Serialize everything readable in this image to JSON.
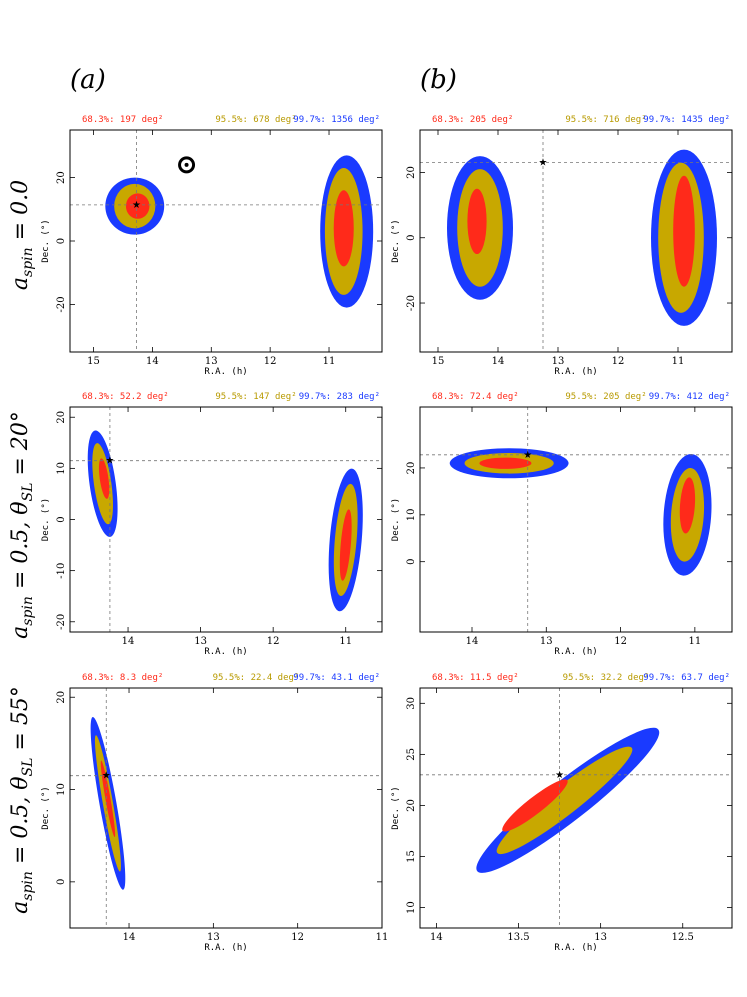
{
  "columns": [
    "(a)",
    "(b)"
  ],
  "rows": [
    {
      "label_main": "a",
      "label_sub": "spin",
      "label_rest": " = 0.0"
    },
    {
      "label_main": "a",
      "label_sub": "spin",
      "label_rest": " = 0.5, θ",
      "label_sub2": "SL",
      "label_end": " = 20°"
    },
    {
      "label_main": "a",
      "label_sub": "spin",
      "label_rest": " = 0.5, θ",
      "label_sub2": "SL",
      "label_end": " = 55°"
    }
  ],
  "colors": {
    "c68": "#ff2a1a",
    "c95": "#c8a800",
    "c99": "#1a3aff"
  },
  "chart_data": [
    {
      "id": "a0",
      "type": "heatmap",
      "xlabel": "R.A. (h)",
      "ylabel": "Dec. (°)",
      "xlim": [
        15.4,
        10.1
      ],
      "ylim": [
        -35,
        35
      ],
      "xticks": [
        15,
        14,
        13,
        12,
        11
      ],
      "yticks": [
        -20,
        0,
        20
      ],
      "areas": {
        "c68": "68.3%: 197 deg²",
        "c95": "95.5%: 678 deg²",
        "c99": "99.7%: 1356 deg²"
      },
      "true_position": {
        "ra": 14.27,
        "dec": 11.4
      },
      "extra_marker": {
        "ra": 13.42,
        "dec": 24.0
      },
      "regions": [
        {
          "ra": 10.7,
          "dec": 3,
          "a": 0.45,
          "b": 24,
          "rot": 0,
          "level": 99
        },
        {
          "ra": 10.75,
          "dec": 3,
          "a": 0.32,
          "b": 20,
          "rot": 0,
          "level": 95
        },
        {
          "ra": 10.75,
          "dec": 4,
          "a": 0.17,
          "b": 12,
          "rot": 0,
          "level": 68
        },
        {
          "ra": 14.3,
          "dec": 11,
          "a": 0.5,
          "b": 9,
          "rot": 0,
          "level": 99
        },
        {
          "ra": 14.3,
          "dec": 11,
          "a": 0.35,
          "b": 7,
          "rot": 0,
          "level": 95
        },
        {
          "ra": 14.25,
          "dec": 11,
          "a": 0.2,
          "b": 4,
          "rot": 0,
          "level": 68
        }
      ]
    },
    {
      "id": "b0",
      "type": "heatmap",
      "xlabel": "R.A. (h)",
      "ylabel": "Dec. (°)",
      "xlim": [
        15.3,
        10.1
      ],
      "ylim": [
        -35,
        33
      ],
      "xticks": [
        15,
        14,
        13,
        12,
        11
      ],
      "yticks": [
        -20,
        0,
        20
      ],
      "areas": {
        "c68": "68.3%: 205 deg²",
        "c95": "95.5%: 716 deg²",
        "c99": "99.7%: 1435 deg²"
      },
      "true_position": {
        "ra": 13.25,
        "dec": 23.0
      },
      "regions": [
        {
          "ra": 10.9,
          "dec": 0,
          "a": 0.55,
          "b": 27,
          "rot": 0,
          "level": 99
        },
        {
          "ra": 10.95,
          "dec": 0,
          "a": 0.38,
          "b": 23,
          "rot": 0,
          "level": 95
        },
        {
          "ra": 10.9,
          "dec": 2,
          "a": 0.18,
          "b": 17,
          "rot": 0,
          "level": 68
        },
        {
          "ra": 14.3,
          "dec": 3,
          "a": 0.55,
          "b": 22,
          "rot": 0,
          "level": 99
        },
        {
          "ra": 14.3,
          "dec": 3,
          "a": 0.38,
          "b": 18,
          "rot": 0,
          "level": 95
        },
        {
          "ra": 14.35,
          "dec": 5,
          "a": 0.16,
          "b": 10,
          "rot": 0,
          "level": 68
        }
      ]
    },
    {
      "id": "a1",
      "type": "heatmap",
      "xlabel": "R.A. (h)",
      "ylabel": "Dec. (°)",
      "xlim": [
        14.8,
        10.5
      ],
      "ylim": [
        -22,
        22
      ],
      "xticks": [
        14,
        13,
        12,
        11
      ],
      "yticks": [
        -20,
        -10,
        0,
        10,
        20
      ],
      "areas": {
        "c68": "68.3%: 52.2 deg²",
        "c95": "95.5%: 147 deg²",
        "c99": "99.7%: 283 deg²"
      },
      "true_position": {
        "ra": 14.25,
        "dec": 11.5
      },
      "regions": [
        {
          "ra": 14.35,
          "dec": 7,
          "a": 0.18,
          "b": 10.5,
          "rot": -8,
          "level": 99
        },
        {
          "ra": 14.35,
          "dec": 7,
          "a": 0.12,
          "b": 8,
          "rot": -8,
          "level": 95
        },
        {
          "ra": 14.33,
          "dec": 8,
          "a": 0.06,
          "b": 4,
          "rot": -8,
          "level": 68
        },
        {
          "ra": 11.0,
          "dec": -4,
          "a": 0.22,
          "b": 14,
          "rot": 5,
          "level": 99
        },
        {
          "ra": 11.0,
          "dec": -4,
          "a": 0.15,
          "b": 11,
          "rot": 5,
          "level": 95
        },
        {
          "ra": 11.0,
          "dec": -5,
          "a": 0.07,
          "b": 7,
          "rot": 5,
          "level": 68
        }
      ]
    },
    {
      "id": "b1",
      "type": "heatmap",
      "xlabel": "R.A. (h)",
      "ylabel": "Dec. (°)",
      "xlim": [
        14.7,
        10.5
      ],
      "ylim": [
        -15,
        33
      ],
      "xticks": [
        14,
        13,
        12,
        11
      ],
      "yticks": [
        0,
        10,
        20
      ],
      "areas": {
        "c68": "68.3%: 72.4 deg²",
        "c95": "95.5%: 205 deg²",
        "c99": "99.7%: 412 deg²"
      },
      "true_position": {
        "ra": 13.25,
        "dec": 22.8
      },
      "regions": [
        {
          "ra": 13.5,
          "dec": 21,
          "a": 0.8,
          "b": 3.2,
          "rot": 0,
          "level": 99
        },
        {
          "ra": 13.5,
          "dec": 21,
          "a": 0.6,
          "b": 2.2,
          "rot": 0,
          "level": 95
        },
        {
          "ra": 13.55,
          "dec": 21,
          "a": 0.35,
          "b": 1.2,
          "rot": 0,
          "level": 68
        },
        {
          "ra": 11.1,
          "dec": 10,
          "a": 0.32,
          "b": 13,
          "rot": 4,
          "level": 99
        },
        {
          "ra": 11.1,
          "dec": 10,
          "a": 0.22,
          "b": 10,
          "rot": 4,
          "level": 95
        },
        {
          "ra": 11.1,
          "dec": 12,
          "a": 0.1,
          "b": 6,
          "rot": 4,
          "level": 68
        }
      ]
    },
    {
      "id": "a2",
      "type": "heatmap",
      "xlabel": "R.A. (h)",
      "ylabel": "Dec. (°)",
      "xlim": [
        14.7,
        11.0
      ],
      "ylim": [
        -5,
        21
      ],
      "xticks": [
        14,
        13,
        12,
        11
      ],
      "yticks": [
        0,
        10,
        20
      ],
      "areas": {
        "c68": "68.3%: 8.3 deg²",
        "c95": "95.5%: 22.4 deg²",
        "c99": "99.7%: 43.1 deg²"
      },
      "true_position": {
        "ra": 14.27,
        "dec": 11.5
      },
      "regions": [
        {
          "ra": 14.25,
          "dec": 8.5,
          "a": 0.1,
          "b": 9.5,
          "rot": -10,
          "level": 99
        },
        {
          "ra": 14.25,
          "dec": 8.5,
          "a": 0.06,
          "b": 7.5,
          "rot": -10,
          "level": 95
        },
        {
          "ra": 14.25,
          "dec": 9,
          "a": 0.03,
          "b": 4.2,
          "rot": -10,
          "level": 68
        }
      ]
    },
    {
      "id": "b2",
      "type": "heatmap",
      "xlabel": "R.A. (h)",
      "ylabel": "Dec. (°)",
      "xlim": [
        14.1,
        12.2
      ],
      "ylim": [
        8,
        31.5
      ],
      "xticks": [
        14,
        13.5,
        13,
        12.5
      ],
      "yticks": [
        10,
        15,
        20,
        25,
        30
      ],
      "areas": {
        "c68": "68.3%: 11.5 deg²",
        "c95": "95.5%: 32.2 deg²",
        "c99": "99.7%: 63.7 deg²"
      },
      "true_position": {
        "ra": 13.25,
        "dec": 23.0
      },
      "regions": [
        {
          "ra": 13.2,
          "dec": 20.5,
          "a": 0.7,
          "b": 2.0,
          "rot": -38,
          "level": 99
        },
        {
          "ra": 13.22,
          "dec": 20.5,
          "a": 0.52,
          "b": 1.4,
          "rot": -38,
          "level": 95
        },
        {
          "ra": 13.4,
          "dec": 20.0,
          "a": 0.25,
          "b": 0.8,
          "rot": -38,
          "level": 68
        }
      ]
    }
  ]
}
